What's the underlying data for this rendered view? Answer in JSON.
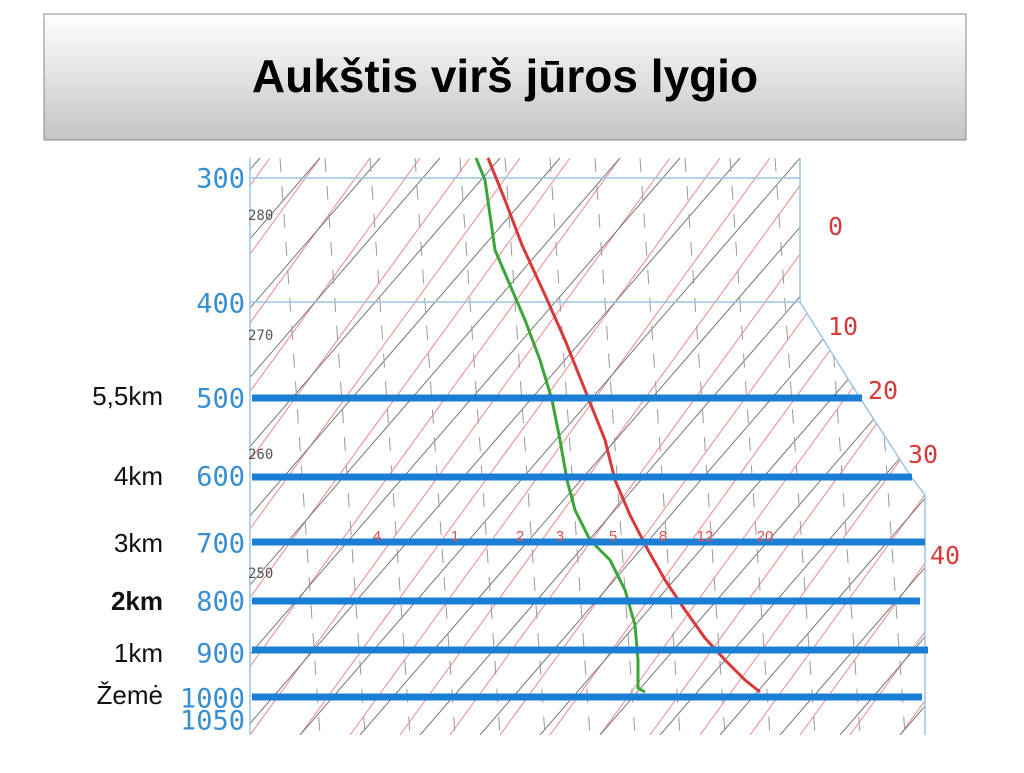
{
  "title": "Aukštis virš jūros lygio",
  "pressure_labels": [
    "300",
    "400",
    "500",
    "600",
    "700",
    "800",
    "900",
    "1000",
    "1050"
  ],
  "height_labels": [
    "5,5km",
    "4km",
    "3km",
    "2km",
    "1km",
    "Žemė"
  ],
  "temperature_labels": [
    "0",
    "10",
    "20",
    "30",
    "40"
  ],
  "mixing_ratio_labels": [
    "4",
    "1",
    "2",
    "3",
    "5",
    "8",
    "12",
    "20"
  ],
  "theta_labels": [
    "280",
    "270",
    "260",
    "250"
  ]
}
